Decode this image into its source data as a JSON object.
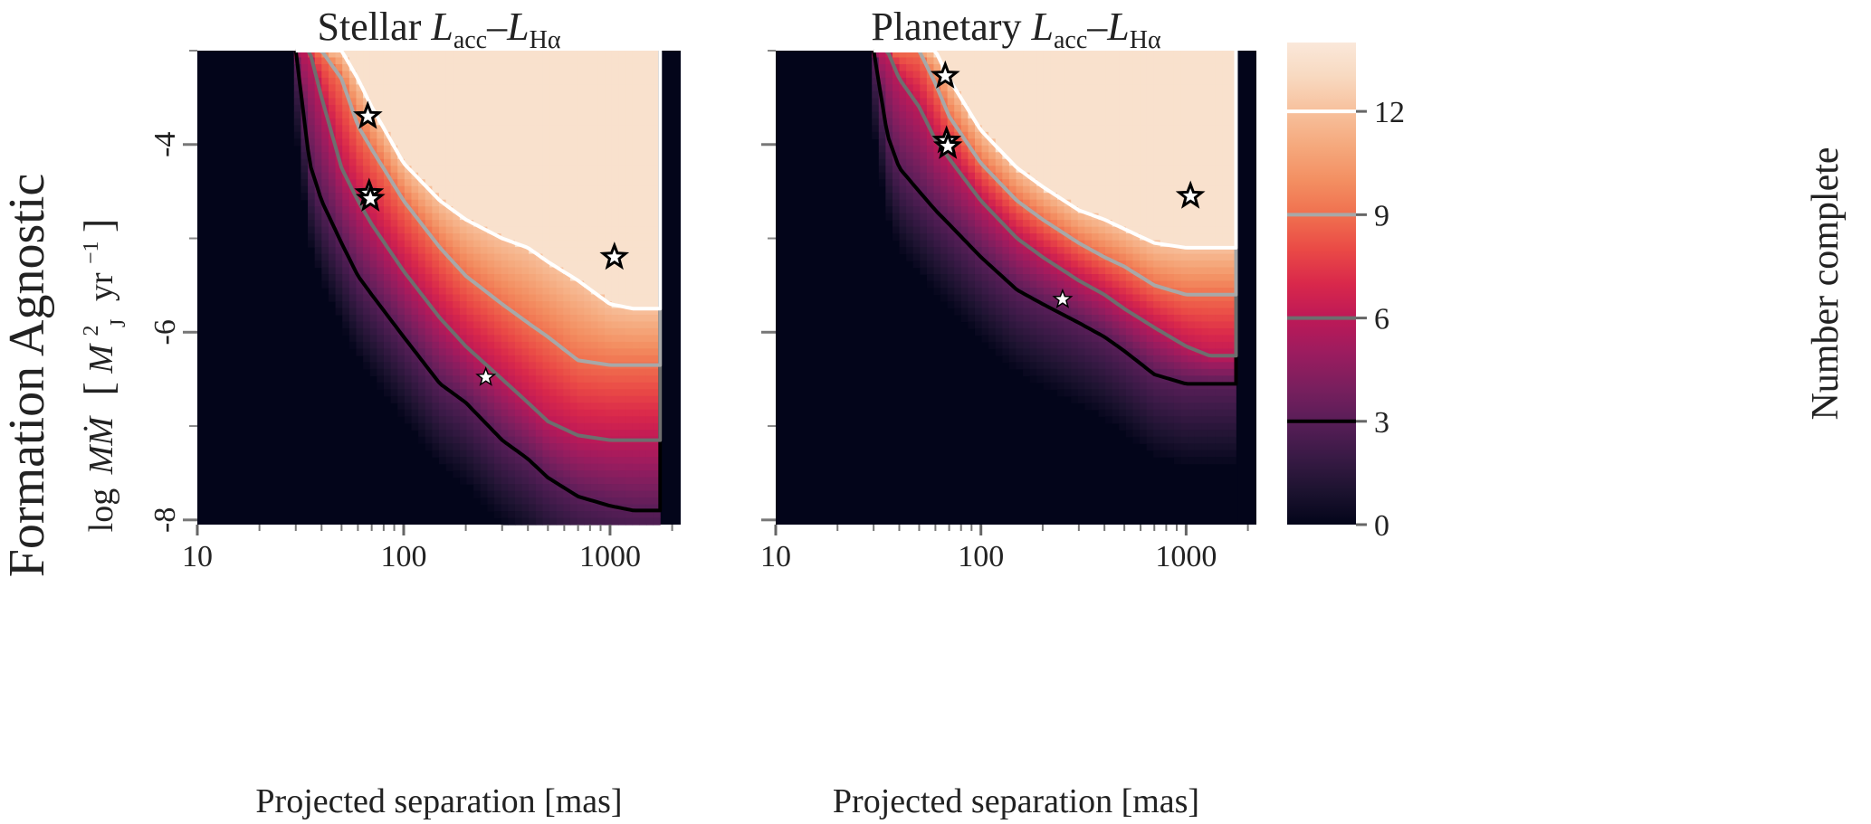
{
  "figure": {
    "row_label": "Formation Agnostic",
    "ylabel": {
      "prefix": "log",
      "mdot": "MṀ",
      "open": "[",
      "m": "M",
      "m_sub": "J",
      "m_sup": "2",
      "yr": "yr",
      "yr_sup": "−1",
      "close": "]"
    },
    "colorbar": {
      "label": "Number complete",
      "range": [
        0,
        14
      ],
      "ticks": [
        "0",
        "3",
        "6",
        "9",
        "12"
      ],
      "tick_values": [
        0,
        3,
        6,
        9,
        12
      ],
      "contour_levels": [
        3,
        6,
        9,
        12
      ],
      "contour_colors": [
        "#000000",
        "#6e6e6e",
        "#a8a8a8",
        "#ffffff"
      ],
      "palette": [
        "#03051a",
        "#1d1330",
        "#3a1a46",
        "#591e58",
        "#7a1f5e",
        "#9c1c5f",
        "#be1957",
        "#d9284b",
        "#ea4a46",
        "#f0704f",
        "#f38f62",
        "#f5a97d",
        "#f7c09c",
        "#f8d9c0",
        "#fae8da"
      ]
    }
  },
  "chart_data": [
    {
      "type": "heatmap",
      "title_main": "Stellar ",
      "title_l1": "L",
      "title_sub1": "acc",
      "title_dash": "–",
      "title_l2": "L",
      "title_sub2": "Hα",
      "xlabel": "Projected separation [mas]",
      "x_scale": "log",
      "xlim": [
        10,
        2200
      ],
      "ylim": [
        -8.05,
        -3.0
      ],
      "x_ticks": [
        "10",
        "100",
        "1000"
      ],
      "x_tick_values": [
        10,
        100,
        1000
      ],
      "y_ticks": [
        "-4",
        "-6",
        "-8"
      ],
      "y_tick_values": [
        -4,
        -6,
        -8
      ],
      "outer_sep_limit": 1750,
      "contour_boundary": {
        "sep": [
          30,
          35,
          40,
          50,
          60,
          70,
          100,
          150,
          200,
          300,
          400,
          500,
          700,
          1000,
          1300,
          1700
        ],
        "level_3": [
          -3.0,
          -4.2,
          -4.6,
          -5.05,
          -5.4,
          -5.6,
          -6.05,
          -6.55,
          -6.75,
          -7.15,
          -7.35,
          -7.55,
          -7.75,
          -7.85,
          -7.9,
          -7.9
        ],
        "level_6": [
          -3.0,
          -3.0,
          -3.5,
          -4.25,
          -4.6,
          -4.85,
          -5.35,
          -5.85,
          -6.15,
          -6.5,
          -6.75,
          -6.95,
          -7.1,
          -7.15,
          -7.15,
          -7.15
        ],
        "level_9": [
          -3.0,
          -3.0,
          -3.0,
          -3.3,
          -3.8,
          -4.05,
          -4.6,
          -5.1,
          -5.4,
          -5.7,
          -5.9,
          -6.05,
          -6.3,
          -6.35,
          -6.35,
          -6.35
        ],
        "level_12": [
          -3.0,
          -3.0,
          -3.0,
          -3.0,
          -3.3,
          -3.6,
          -4.2,
          -4.6,
          -4.8,
          -5.0,
          -5.1,
          -5.25,
          -5.45,
          -5.7,
          -5.75,
          -5.75
        ]
      },
      "targets": [
        {
          "sep": 67,
          "logmdot": -3.7,
          "style": "open"
        },
        {
          "sep": 68,
          "logmdot": -4.52,
          "style": "open"
        },
        {
          "sep": 69,
          "logmdot": -4.58,
          "style": "open"
        },
        {
          "sep": 1050,
          "logmdot": -5.2,
          "style": "open"
        },
        {
          "sep": 250,
          "logmdot": -6.48,
          "style": "filled"
        }
      ]
    },
    {
      "type": "heatmap",
      "title_main": "Planetary ",
      "title_l1": "L",
      "title_sub1": "acc",
      "title_dash": "–",
      "title_l2": "L",
      "title_sub2": "Hα",
      "xlabel": "Projected separation [mas]",
      "x_scale": "log",
      "xlim": [
        10,
        2200
      ],
      "ylim": [
        -8.05,
        -3.0
      ],
      "x_ticks": [
        "10",
        "100",
        "1000"
      ],
      "x_tick_values": [
        10,
        100,
        1000
      ],
      "y_ticks": [],
      "y_tick_values": [
        -4,
        -6,
        -8
      ],
      "outer_sep_limit": 1750,
      "contour_boundary": {
        "sep": [
          30,
          35,
          40,
          50,
          60,
          70,
          100,
          150,
          200,
          300,
          400,
          500,
          700,
          1000,
          1300,
          1700
        ],
        "level_3": [
          -3.0,
          -3.9,
          -4.25,
          -4.5,
          -4.7,
          -4.85,
          -5.2,
          -5.55,
          -5.7,
          -5.9,
          -6.05,
          -6.2,
          -6.45,
          -6.55,
          -6.55,
          -6.55
        ],
        "level_6": [
          -3.0,
          -3.0,
          -3.3,
          -3.6,
          -3.95,
          -4.15,
          -4.6,
          -5.0,
          -5.2,
          -5.45,
          -5.6,
          -5.75,
          -5.95,
          -6.15,
          -6.25,
          -6.25
        ],
        "level_9": [
          -3.0,
          -3.0,
          -3.0,
          -3.0,
          -3.35,
          -3.7,
          -4.2,
          -4.6,
          -4.8,
          -5.05,
          -5.2,
          -5.3,
          -5.5,
          -5.6,
          -5.6,
          -5.6
        ],
        "level_12": [
          -3.0,
          -3.0,
          -3.0,
          -3.0,
          -3.0,
          -3.3,
          -3.85,
          -4.25,
          -4.45,
          -4.7,
          -4.8,
          -4.9,
          -5.05,
          -5.1,
          -5.1,
          -5.1
        ]
      },
      "targets": [
        {
          "sep": 67,
          "logmdot": -3.27,
          "style": "open"
        },
        {
          "sep": 68,
          "logmdot": -3.96,
          "style": "open"
        },
        {
          "sep": 69,
          "logmdot": -4.02,
          "style": "open"
        },
        {
          "sep": 1050,
          "logmdot": -4.55,
          "style": "open"
        },
        {
          "sep": 250,
          "logmdot": -5.65,
          "style": "filled"
        }
      ]
    }
  ]
}
